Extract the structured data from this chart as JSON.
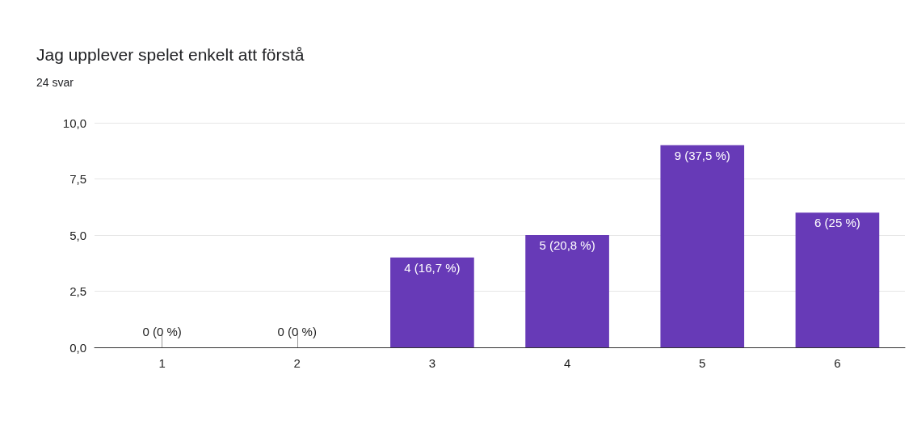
{
  "chart_data": {
    "type": "bar",
    "title": "Jag upplever spelet enkelt att förstå",
    "subtitle": "24 svar",
    "categories": [
      "1",
      "2",
      "3",
      "4",
      "5",
      "6"
    ],
    "values": [
      0,
      0,
      4,
      5,
      9,
      6
    ],
    "color": "#673ab7",
    "value_labels": [
      "0 (0 %)",
      "0 (0 %)",
      "4 (16,7 %)",
      "5 (20,8 %)",
      "9 (37,5 %)",
      "6 (25 %)"
    ],
    "ylim": [
      0,
      10
    ],
    "yticks": [
      {
        "value": 0,
        "label": "0,0"
      },
      {
        "value": 2.5,
        "label": "2,5"
      },
      {
        "value": 5,
        "label": "5,0"
      },
      {
        "value": 7.5,
        "label": "7,5"
      },
      {
        "value": 10,
        "label": "10,0"
      }
    ],
    "grid": "y"
  }
}
